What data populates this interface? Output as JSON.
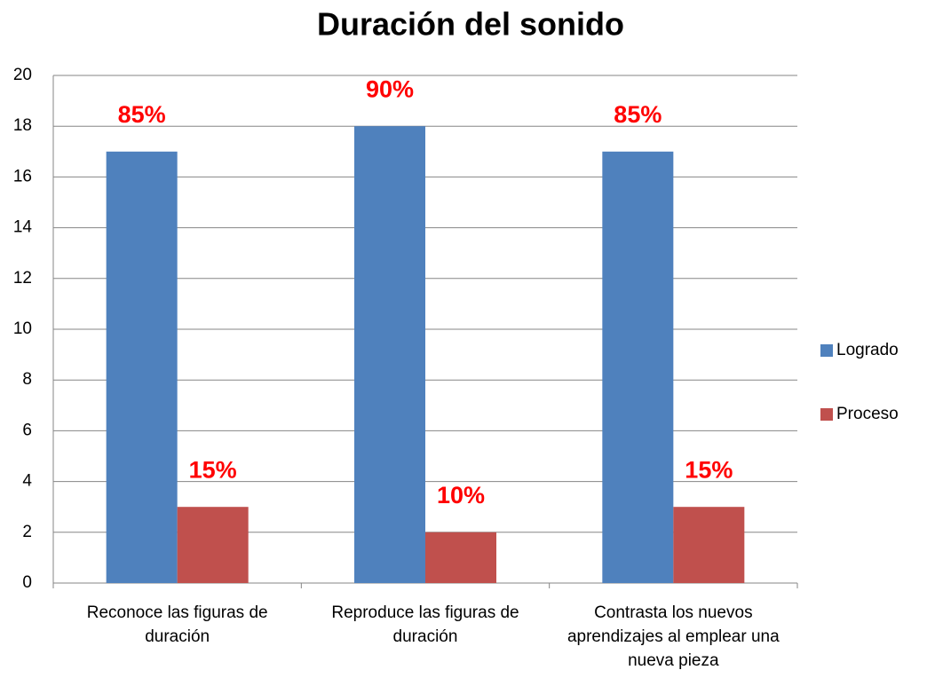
{
  "chart_data": {
    "type": "bar",
    "title": "Duración del sonido",
    "categories": [
      "Reconoce las figuras de duración",
      "Reproduce las figuras de duración",
      "Contrasta los nuevos aprendizajes al emplear una nueva pieza"
    ],
    "series": [
      {
        "name": "Logrado",
        "color": "#4f81bd",
        "values": [
          17,
          18,
          17
        ],
        "data_labels": [
          "85%",
          "90%",
          "85%"
        ]
      },
      {
        "name": "Proceso",
        "color": "#c0504d",
        "values": [
          3,
          2,
          3
        ],
        "data_labels": [
          "15%",
          "10%",
          "15%"
        ]
      }
    ],
    "ylim": [
      0,
      20
    ],
    "yticks": [
      0,
      2,
      4,
      6,
      8,
      10,
      12,
      14,
      16,
      18,
      20
    ],
    "grid": true,
    "legend": "right"
  }
}
